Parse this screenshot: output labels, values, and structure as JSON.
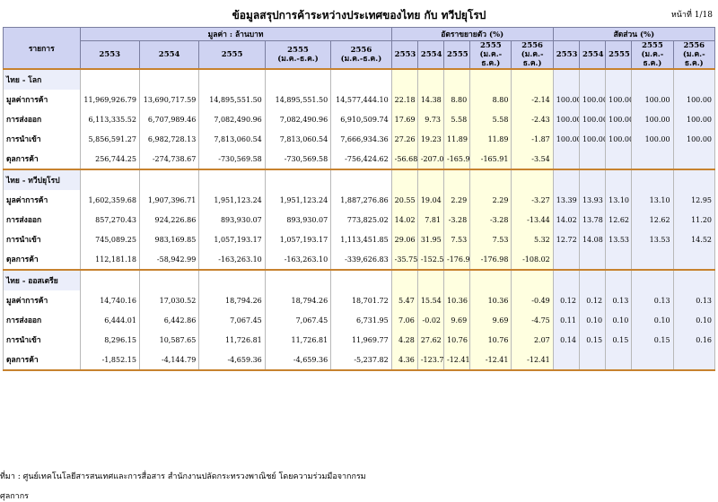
{
  "title": "ข้อมูลสรุปการค้าระหว่างประเทศของไทย กับ ทวีปยุโรป",
  "page_no": "หน้าที่ 1/18",
  "header": {
    "item_label": "รายการ",
    "group_value": "มูลค่า : ล้านบาท",
    "group_growth": "อัตราขยายตัว (%)",
    "group_share": "สัดส่วน (%)",
    "years": [
      "2553",
      "2554",
      "2555",
      "2555\n(ม.ค.-ธ.ค.)",
      "2556\n(ม.ค.-ธ.ค.)"
    ]
  },
  "sections": [
    {
      "name": "ไทย - โลก",
      "rows": [
        {
          "label": "มูลค่าการค้า",
          "value": [
            "11,969,926.79",
            "13,690,717.59",
            "14,895,551.50",
            "14,895,551.50",
            "14,577,444.10"
          ],
          "growth": [
            "22.18",
            "14.38",
            "8.80",
            "8.80",
            "-2.14"
          ],
          "share": [
            "100.00",
            "100.00",
            "100.00",
            "100.00",
            "100.00"
          ]
        },
        {
          "label": "การส่งออก",
          "value": [
            "6,113,335.52",
            "6,707,989.46",
            "7,082,490.96",
            "7,082,490.96",
            "6,910,509.74"
          ],
          "growth": [
            "17.69",
            "9.73",
            "5.58",
            "5.58",
            "-2.43"
          ],
          "share": [
            "100.00",
            "100.00",
            "100.00",
            "100.00",
            "100.00"
          ]
        },
        {
          "label": "การนำเข้า",
          "value": [
            "5,856,591.27",
            "6,982,728.13",
            "7,813,060.54",
            "7,813,060.54",
            "7,666,934.36"
          ],
          "growth": [
            "27.26",
            "19.23",
            "11.89",
            "11.89",
            "-1.87"
          ],
          "share": [
            "100.00",
            "100.00",
            "100.00",
            "100.00",
            "100.00"
          ]
        },
        {
          "label": "ดุลการค้า",
          "value": [
            "256,744.25",
            "-274,738.67",
            "-730,569.58",
            "-730,569.58",
            "-756,424.62"
          ],
          "growth": [
            "-56.68",
            "-207.01",
            "-165.91",
            "-165.91",
            "-3.54"
          ],
          "share": [
            "",
            "",
            "",
            "",
            ""
          ]
        }
      ]
    },
    {
      "name": "ไทย - ทวีปยุโรป",
      "rows": [
        {
          "label": "มูลค่าการค้า",
          "value": [
            "1,602,359.68",
            "1,907,396.71",
            "1,951,123.24",
            "1,951,123.24",
            "1,887,276.86"
          ],
          "growth": [
            "20.55",
            "19.04",
            "2.29",
            "2.29",
            "-3.27"
          ],
          "share": [
            "13.39",
            "13.93",
            "13.10",
            "13.10",
            "12.95"
          ]
        },
        {
          "label": "การส่งออก",
          "value": [
            "857,270.43",
            "924,226.86",
            "893,930.07",
            "893,930.07",
            "773,825.02"
          ],
          "growth": [
            "14.02",
            "7.81",
            "-3.28",
            "-3.28",
            "-13.44"
          ],
          "share": [
            "14.02",
            "13.78",
            "12.62",
            "12.62",
            "11.20"
          ]
        },
        {
          "label": "การนำเข้า",
          "value": [
            "745,089.25",
            "983,169.85",
            "1,057,193.17",
            "1,057,193.17",
            "1,113,451.85"
          ],
          "growth": [
            "29.06",
            "31.95",
            "7.53",
            "7.53",
            "5.32"
          ],
          "share": [
            "12.72",
            "14.08",
            "13.53",
            "13.53",
            "14.52"
          ]
        },
        {
          "label": "ดุลการค้า",
          "value": [
            "112,181.18",
            "-58,942.99",
            "-163,263.10",
            "-163,263.10",
            "-339,626.83"
          ],
          "growth": [
            "-35.75",
            "-152.54",
            "-176.98",
            "-176.98",
            "-108.02"
          ],
          "share": [
            "",
            "",
            "",
            "",
            ""
          ]
        }
      ]
    },
    {
      "name": "ไทย - ออสเตรีย",
      "rows": [
        {
          "label": "มูลค่าการค้า",
          "value": [
            "14,740.16",
            "17,030.52",
            "18,794.26",
            "18,794.26",
            "18,701.72"
          ],
          "growth": [
            "5.47",
            "15.54",
            "10.36",
            "10.36",
            "-0.49"
          ],
          "share": [
            "0.12",
            "0.12",
            "0.13",
            "0.13",
            "0.13"
          ]
        },
        {
          "label": "การส่งออก",
          "value": [
            "6,444.01",
            "6,442.86",
            "7,067.45",
            "7,067.45",
            "6,731.95"
          ],
          "growth": [
            "7.06",
            "-0.02",
            "9.69",
            "9.69",
            "-4.75"
          ],
          "share": [
            "0.11",
            "0.10",
            "0.10",
            "0.10",
            "0.10"
          ]
        },
        {
          "label": "การนำเข้า",
          "value": [
            "8,296.15",
            "10,587.65",
            "11,726.81",
            "11,726.81",
            "11,969.77"
          ],
          "growth": [
            "4.28",
            "27.62",
            "10.76",
            "10.76",
            "2.07"
          ],
          "share": [
            "0.14",
            "0.15",
            "0.15",
            "0.15",
            "0.16"
          ]
        },
        {
          "label": "ดุลการค้า",
          "value": [
            "-1,852.15",
            "-4,144.79",
            "-4,659.36",
            "-4,659.36",
            "-5,237.82"
          ],
          "growth": [
            "4.36",
            "-123.78",
            "-12.41",
            "-12.41",
            "-12.41"
          ],
          "share": [
            "",
            "",
            "",
            "",
            ""
          ]
        }
      ]
    }
  ],
  "footer": {
    "source": "ที่มา : ศูนย์เทคโนโลยีสารสนเทศและการสื่อสาร สำนักงานปลัดกระทรวงพาณิชย์ โดยความร่วมมือจากกรม",
    "next": "ศุลกากร"
  }
}
